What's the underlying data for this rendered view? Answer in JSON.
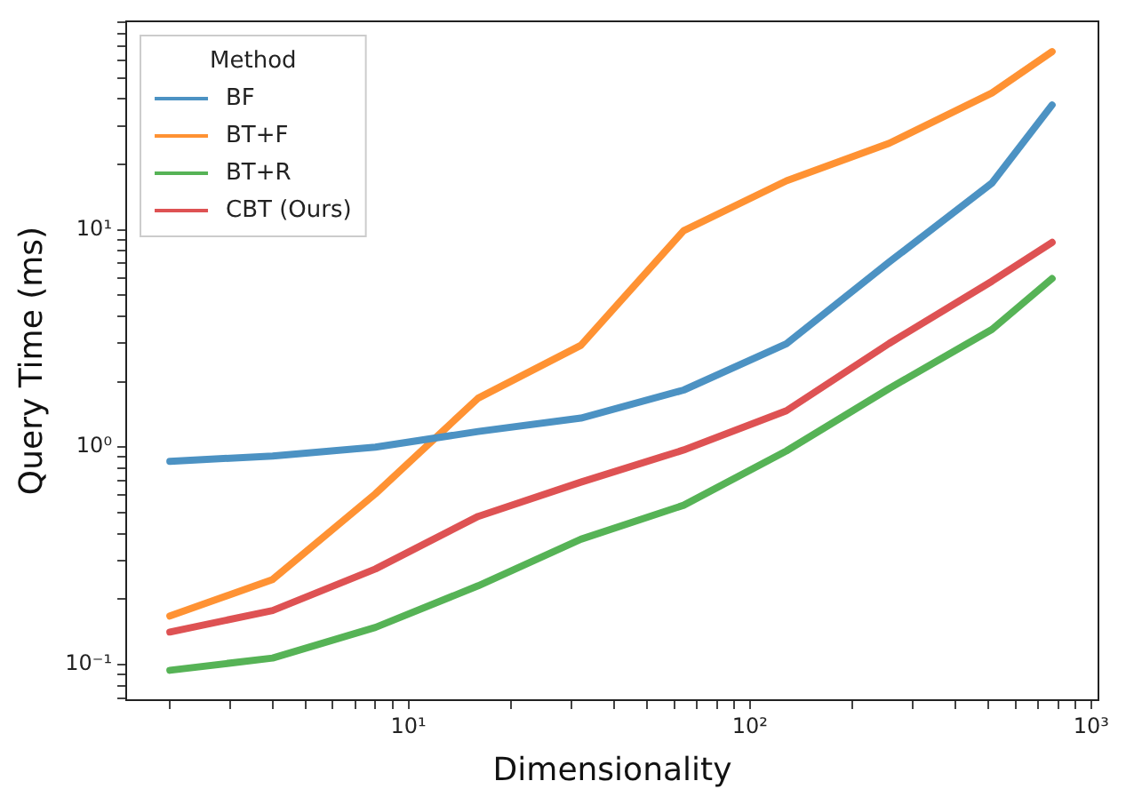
{
  "chart_data": {
    "type": "line",
    "xlabel": "Dimensionality",
    "ylabel": "Query Time (ms)",
    "legend_title": "Method",
    "legend": "top left",
    "grid": false,
    "log": "xy",
    "marker": "none",
    "line_style": "solid",
    "x": [
      2,
      4,
      8,
      16,
      32,
      64,
      128,
      256,
      512,
      768
    ],
    "xlim": [
      1.49,
      1050
    ],
    "ylim": [
      0.0685,
      91
    ],
    "xticks": [
      {
        "value": 2,
        "label": null
      },
      {
        "value": 3,
        "label": null
      },
      {
        "value": 4,
        "label": null
      },
      {
        "value": 5,
        "label": null
      },
      {
        "value": 6,
        "label": null
      },
      {
        "value": 7,
        "label": null
      },
      {
        "value": 8,
        "label": null
      },
      {
        "value": 9,
        "label": null
      },
      {
        "value": 10,
        "label": "10¹"
      },
      {
        "value": 20,
        "label": null
      },
      {
        "value": 30,
        "label": null
      },
      {
        "value": 40,
        "label": null
      },
      {
        "value": 50,
        "label": null
      },
      {
        "value": 60,
        "label": null
      },
      {
        "value": 70,
        "label": null
      },
      {
        "value": 80,
        "label": null
      },
      {
        "value": 90,
        "label": null
      },
      {
        "value": 100,
        "label": "10²"
      },
      {
        "value": 200,
        "label": null
      },
      {
        "value": 300,
        "label": null
      },
      {
        "value": 400,
        "label": null
      },
      {
        "value": 500,
        "label": null
      },
      {
        "value": 600,
        "label": null
      },
      {
        "value": 700,
        "label": null
      },
      {
        "value": 800,
        "label": null
      },
      {
        "value": 900,
        "label": null
      },
      {
        "value": 1000,
        "label": "10³"
      }
    ],
    "yticks": [
      {
        "value": 0.07,
        "label": null
      },
      {
        "value": 0.08,
        "label": null
      },
      {
        "value": 0.09,
        "label": null
      },
      {
        "value": 0.1,
        "label": "10⁻¹"
      },
      {
        "value": 0.2,
        "label": null
      },
      {
        "value": 0.3,
        "label": null
      },
      {
        "value": 0.4,
        "label": null
      },
      {
        "value": 0.5,
        "label": null
      },
      {
        "value": 0.6,
        "label": null
      },
      {
        "value": 0.7,
        "label": null
      },
      {
        "value": 0.8,
        "label": null
      },
      {
        "value": 0.9,
        "label": null
      },
      {
        "value": 1,
        "label": "10⁰"
      },
      {
        "value": 2,
        "label": null
      },
      {
        "value": 3,
        "label": null
      },
      {
        "value": 4,
        "label": null
      },
      {
        "value": 5,
        "label": null
      },
      {
        "value": 6,
        "label": null
      },
      {
        "value": 7,
        "label": null
      },
      {
        "value": 8,
        "label": null
      },
      {
        "value": 9,
        "label": null
      },
      {
        "value": 10,
        "label": "10¹"
      },
      {
        "value": 20,
        "label": null
      },
      {
        "value": 30,
        "label": null
      },
      {
        "value": 40,
        "label": null
      },
      {
        "value": 50,
        "label": null
      },
      {
        "value": 60,
        "label": null
      },
      {
        "value": 70,
        "label": null
      },
      {
        "value": 80,
        "label": null
      },
      {
        "value": 90,
        "label": null
      }
    ],
    "series": [
      {
        "name": "BF",
        "color": "#4c92c3",
        "values": [
          0.86,
          0.91,
          1.0,
          1.18,
          1.36,
          1.83,
          2.99,
          7.1,
          16.4,
          37.5
        ]
      },
      {
        "name": "BT+F",
        "color": "#ff9233",
        "values": [
          0.167,
          0.246,
          0.61,
          1.68,
          2.94,
          9.9,
          16.8,
          25,
          42.6,
          66
        ]
      },
      {
        "name": "BT+R",
        "color": "#56b356",
        "values": [
          0.094,
          0.107,
          0.148,
          0.23,
          0.377,
          0.54,
          0.96,
          1.86,
          3.48,
          5.96
        ]
      },
      {
        "name": "CBT (Ours)",
        "color": "#de5253",
        "values": [
          0.141,
          0.177,
          0.275,
          0.48,
          0.69,
          0.97,
          1.47,
          3.0,
          5.8,
          8.75
        ]
      }
    ]
  }
}
